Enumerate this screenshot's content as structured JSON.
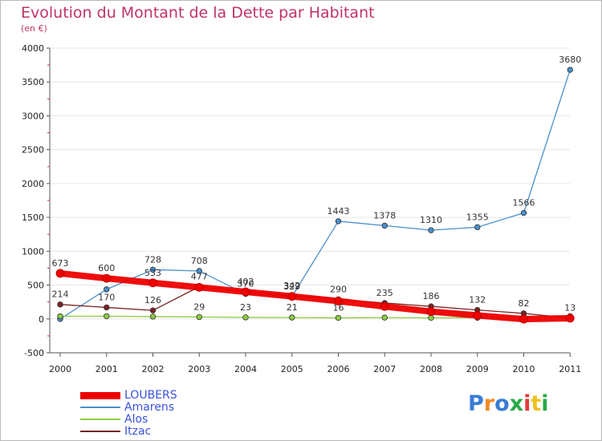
{
  "title": "Evolution du Montant de la Dette par Habitant",
  "subtitle": "(en €)",
  "logo": {
    "text": "Proxiti",
    "colors": [
      "#3a7bd5",
      "#f08a24",
      "#3a7bd5",
      "#2aa84a",
      "#e23a3a",
      "#f0c020",
      "#2aa84a"
    ]
  },
  "chart_data": {
    "type": "line",
    "x": [
      2000,
      2001,
      2002,
      2003,
      2004,
      2005,
      2006,
      2007,
      2008,
      2009,
      2010,
      2011
    ],
    "ylim": [
      -500,
      4000
    ],
    "yticks": [
      -500,
      0,
      500,
      1000,
      1500,
      2000,
      2500,
      3000,
      3500,
      4000
    ],
    "legend_position": "bottom-left",
    "series": [
      {
        "name": "LOUBERS",
        "color": "#ee0000",
        "values": [
          673,
          600,
          533,
          467,
          400,
          333,
          264,
          184,
          109,
          52,
          -3,
          11
        ],
        "labels": [
          "673",
          "600",
          "533",
          "",
          "",
          "",
          "",
          "",
          "",
          "",
          "",
          ""
        ]
      },
      {
        "name": "Amarens",
        "color": "#4a8fcc",
        "values": [
          0,
          437,
          728,
          708,
          370,
          329,
          1443,
          1378,
          1310,
          1355,
          1566,
          3680
        ],
        "labels": [
          "",
          "",
          "728",
          "708",
          "370",
          "329",
          "1443",
          "1378",
          "1310",
          "1355",
          "1566",
          "3680"
        ]
      },
      {
        "name": "Alos",
        "color": "#8ccc44",
        "values": [
          40,
          40,
          35,
          29,
          23,
          21,
          16,
          20,
          16,
          18,
          26,
          41
        ],
        "labels": [
          "",
          "",
          "",
          "29",
          "23",
          "21",
          "16",
          "",
          "",
          "",
          "",
          ""
        ]
      },
      {
        "name": "Itzac",
        "color": "#7a2323",
        "values": [
          214,
          170,
          126,
          477,
          402,
          342,
          290,
          235,
          186,
          132,
          82,
          13
        ],
        "labels": [
          "214",
          "170",
          "126",
          "477",
          "402",
          "342",
          "290",
          "235",
          "186",
          "132",
          "82",
          "13"
        ]
      }
    ]
  }
}
